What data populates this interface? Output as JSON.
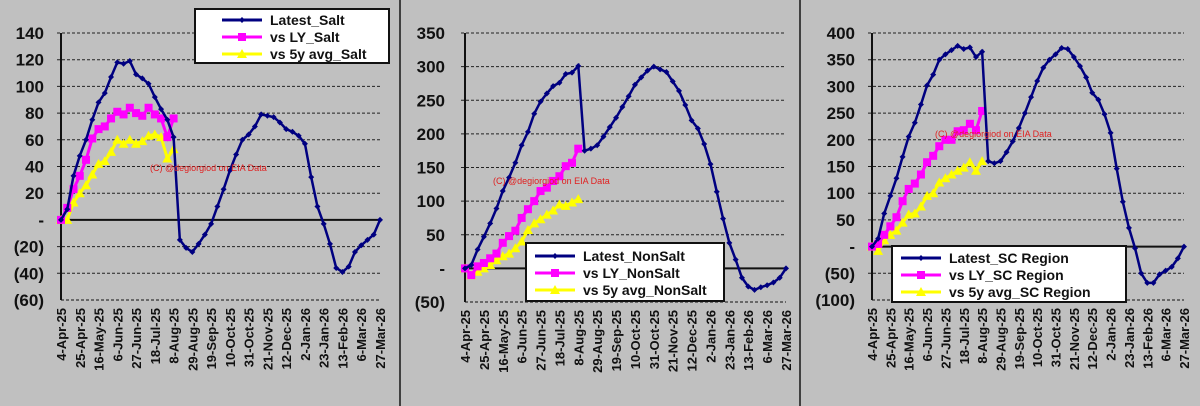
{
  "colors": {
    "latest": "#000080",
    "ly": "#ff00ff",
    "avg5y": "#ffff00",
    "watermark": "#e02020"
  },
  "watermark": "(C) @degiorgiod on EIA Data",
  "chart_data": [
    {
      "type": "line",
      "title": "",
      "xlabel": "",
      "ylabel": "",
      "ylim": [
        -60,
        140
      ],
      "y_ticks": [
        140,
        120,
        100,
        80,
        60,
        40,
        20,
        0,
        -20,
        -40,
        -60
      ],
      "y_tick_labels": [
        "140",
        "120",
        "100",
        "80",
        "60",
        "40",
        "20",
        "-",
        "(20)",
        "(40)",
        "(60)"
      ],
      "x_tick_labels": [
        "4-Apr-25",
        "25-Apr-25",
        "16-May-25",
        "6-Jun-25",
        "27-Jun-25",
        "18-Jul-25",
        "8-Aug-25",
        "29-Aug-25",
        "19-Sep-25",
        "10-Oct-25",
        "31-Oct-25",
        "21-Nov-25",
        "12-Dec-25",
        "2-Jan-26",
        "23-Jan-26",
        "13-Feb-26",
        "6-Mar-26",
        "27-Mar-26"
      ],
      "grid": true,
      "legend_position": "top-right",
      "series": [
        {
          "name": "Latest_Salt",
          "key": "latest",
          "values": [
            0,
            8,
            33,
            48,
            60,
            75,
            88,
            95,
            107,
            118,
            117,
            119,
            109,
            106,
            102,
            92,
            83,
            75,
            62,
            -15,
            -21,
            -24,
            -18,
            -11,
            -3,
            10,
            23,
            37,
            49,
            60,
            64,
            70,
            79,
            78,
            77,
            73,
            68,
            66,
            63,
            57,
            32,
            10,
            -3,
            -18,
            -36,
            -39,
            -35,
            -24,
            -19,
            -15,
            -11,
            0
          ]
        },
        {
          "name": "vs LY_Salt",
          "key": "ly",
          "values": [
            0,
            9,
            23,
            33,
            45,
            61,
            68,
            70,
            76,
            81,
            79,
            84,
            80,
            78,
            84,
            79,
            76,
            62,
            76
          ]
        },
        {
          "name": "vs 5y avg_Salt",
          "key": "avg5y",
          "values": [
            0,
            0,
            13,
            20,
            26,
            34,
            42,
            44,
            51,
            60,
            57,
            60,
            57,
            59,
            63,
            64,
            62,
            46,
            53
          ]
        }
      ]
    },
    {
      "type": "line",
      "title": "",
      "xlabel": "",
      "ylabel": "",
      "ylim": [
        -50,
        350
      ],
      "y_ticks": [
        350,
        300,
        250,
        200,
        150,
        100,
        50,
        0,
        -50
      ],
      "y_tick_labels": [
        "350",
        "300",
        "250",
        "200",
        "150",
        "100",
        "50",
        "-",
        "(50)"
      ],
      "x_tick_labels": [
        "4-Apr-25",
        "25-Apr-25",
        "16-May-25",
        "6-Jun-25",
        "27-Jun-25",
        "18-Jul-25",
        "8-Aug-25",
        "29-Aug-25",
        "19-Sep-25",
        "10-Oct-25",
        "31-Oct-25",
        "21-Nov-25",
        "12-Dec-25",
        "2-Jan-26",
        "23-Jan-26",
        "13-Feb-26",
        "6-Mar-26",
        "27-Mar-26"
      ],
      "grid": true,
      "legend_position": "bottom-center",
      "series": [
        {
          "name": "Latest_NonSalt",
          "key": "latest",
          "values": [
            0,
            5,
            28,
            47,
            67,
            89,
            115,
            135,
            157,
            183,
            203,
            230,
            248,
            260,
            271,
            276,
            289,
            291,
            301,
            175,
            178,
            183,
            196,
            210,
            224,
            240,
            256,
            273,
            284,
            294,
            300,
            296,
            292,
            278,
            264,
            243,
            220,
            208,
            185,
            155,
            114,
            74,
            38,
            13,
            -14,
            -27,
            -32,
            -28,
            -25,
            -21,
            -14,
            0
          ]
        },
        {
          "name": "vs LY_NonSalt",
          "key": "ly",
          "values": [
            0,
            -10,
            3,
            8,
            15,
            22,
            38,
            48,
            56,
            75,
            88,
            100,
            115,
            120,
            130,
            137,
            152,
            157,
            178
          ]
        },
        {
          "name": "vs 5y avg_NonSalt",
          "key": "avg5y",
          "values": [
            0,
            -10,
            -5,
            0,
            5,
            12,
            18,
            22,
            30,
            40,
            57,
            67,
            73,
            80,
            86,
            95,
            93,
            98,
            103
          ]
        }
      ]
    },
    {
      "type": "line",
      "title": "",
      "xlabel": "",
      "ylabel": "",
      "ylim": [
        -100,
        400
      ],
      "y_ticks": [
        400,
        350,
        300,
        250,
        200,
        150,
        100,
        50,
        0,
        -50,
        -100
      ],
      "y_tick_labels": [
        "400",
        "350",
        "300",
        "250",
        "200",
        "150",
        "100",
        "50",
        "-",
        "(50)",
        "(100)"
      ],
      "x_tick_labels": [
        "4-Apr-25",
        "25-Apr-25",
        "16-May-25",
        "6-Jun-25",
        "27-Jun-25",
        "18-Jul-25",
        "8-Aug-25",
        "29-Aug-25",
        "19-Sep-25",
        "10-Oct-25",
        "31-Oct-25",
        "21-Nov-25",
        "12-Dec-25",
        "2-Jan-26",
        "23-Jan-26",
        "13-Feb-26",
        "6-Mar-26",
        "27-Mar-26"
      ],
      "grid": true,
      "legend_position": "bottom-center",
      "series": [
        {
          "name": "Latest_SC Region",
          "key": "latest",
          "values": [
            0,
            15,
            62,
            95,
            128,
            168,
            206,
            232,
            266,
            302,
            322,
            350,
            360,
            368,
            376,
            370,
            373,
            355,
            365,
            160,
            156,
            160,
            177,
            197,
            222,
            250,
            280,
            310,
            335,
            350,
            360,
            372,
            370,
            355,
            338,
            317,
            288,
            275,
            248,
            213,
            146,
            84,
            35,
            -3,
            -50,
            -68,
            -68,
            -52,
            -45,
            -38,
            -22,
            0
          ]
        },
        {
          "name": "vs LY_SC Region",
          "key": "ly",
          "values": [
            0,
            5,
            22,
            38,
            55,
            85,
            108,
            118,
            135,
            158,
            170,
            188,
            200,
            200,
            216,
            218,
            230,
            218,
            254
          ]
        },
        {
          "name": "vs 5y avg_SC Region",
          "key": "avg5y",
          "values": [
            0,
            -8,
            12,
            22,
            30,
            45,
            60,
            62,
            75,
            95,
            100,
            120,
            128,
            135,
            142,
            148,
            158,
            142,
            160
          ]
        }
      ]
    }
  ]
}
